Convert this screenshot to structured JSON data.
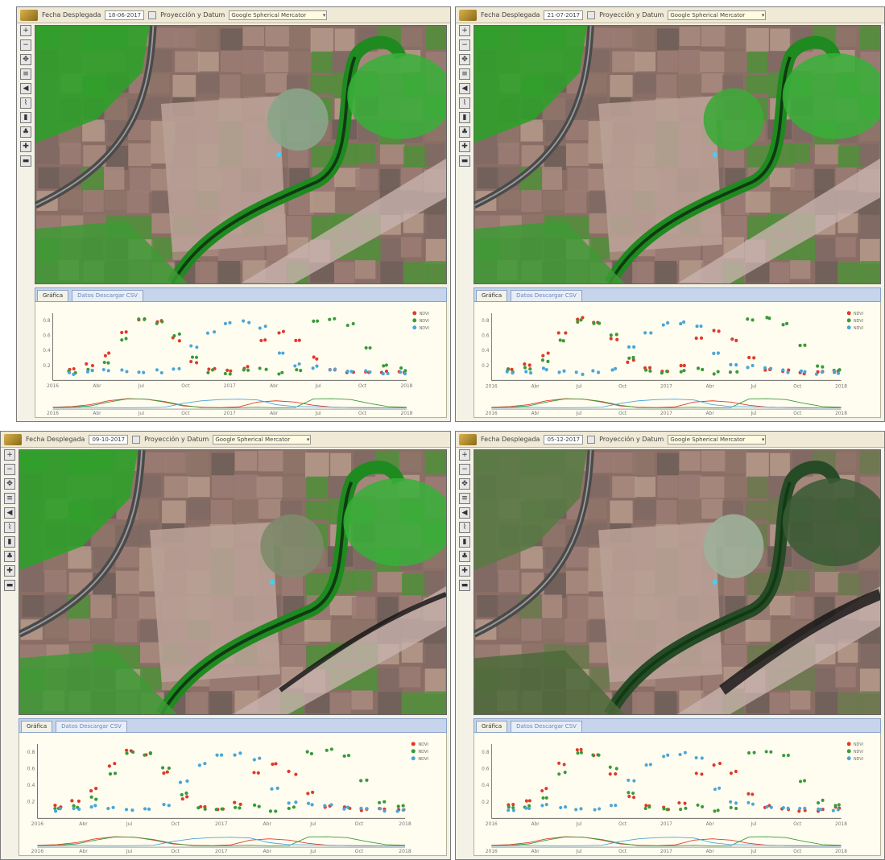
{
  "screen": {
    "proj_label": "Proyección y Datum",
    "proj_value": "Google Spherical Mercator",
    "date_label": "Fecha Desplegada",
    "tab_chart": "Gráfica",
    "tab_data": "Datos",
    "tab_extra": "Descargar CSV",
    "legend": [
      "NDVI",
      "NDVI",
      "NDVI"
    ],
    "x_ticks": [
      "2016",
      "Abr",
      "Jul",
      "Oct",
      "2017",
      "Abr",
      "Jul",
      "Oct",
      "2018"
    ],
    "y_ticks": [
      "0.8",
      "0.6",
      "0.4",
      "0.2"
    ]
  },
  "panels": [
    {
      "date": "18-06-2017"
    },
    {
      "date": "21-07-2017"
    },
    {
      "date": "09-10-2017"
    },
    {
      "date": "05-12-2017"
    }
  ],
  "colors": {
    "red": "#e03a2a",
    "green": "#3a9a3a",
    "blue": "#4aa6d8",
    "vegetation": "#2e8a2a",
    "soil": "#9a7a70"
  },
  "chart_data": {
    "type": "scatter",
    "x_ticks": [
      "2016",
      "Abr",
      "Jul",
      "Oct",
      "2017",
      "Abr",
      "Jul",
      "Oct",
      "2018"
    ],
    "series": [
      {
        "name": "NDVI",
        "color": "#e03a2a",
        "values": [
          0.15,
          0.2,
          0.35,
          0.65,
          0.82,
          0.78,
          0.55,
          0.25,
          0.15,
          0.12,
          0.18,
          0.55,
          0.65,
          0.55,
          0.3,
          0.15,
          0.12,
          0.1,
          0.1,
          0.12
        ]
      },
      {
        "name": "NDVI",
        "color": "#3a9a3a",
        "values": [
          0.12,
          0.15,
          0.25,
          0.55,
          0.8,
          0.78,
          0.6,
          0.3,
          0.12,
          0.1,
          0.12,
          0.15,
          0.1,
          0.12,
          0.8,
          0.82,
          0.75,
          0.45,
          0.2,
          0.15
        ]
      },
      {
        "name": "NDVI",
        "color": "#4aa6d8",
        "values": [
          0.1,
          0.12,
          0.15,
          0.12,
          0.1,
          0.12,
          0.15,
          0.45,
          0.65,
          0.75,
          0.78,
          0.72,
          0.35,
          0.2,
          0.18,
          0.15,
          0.12,
          0.12,
          0.1,
          0.1
        ]
      }
    ]
  }
}
